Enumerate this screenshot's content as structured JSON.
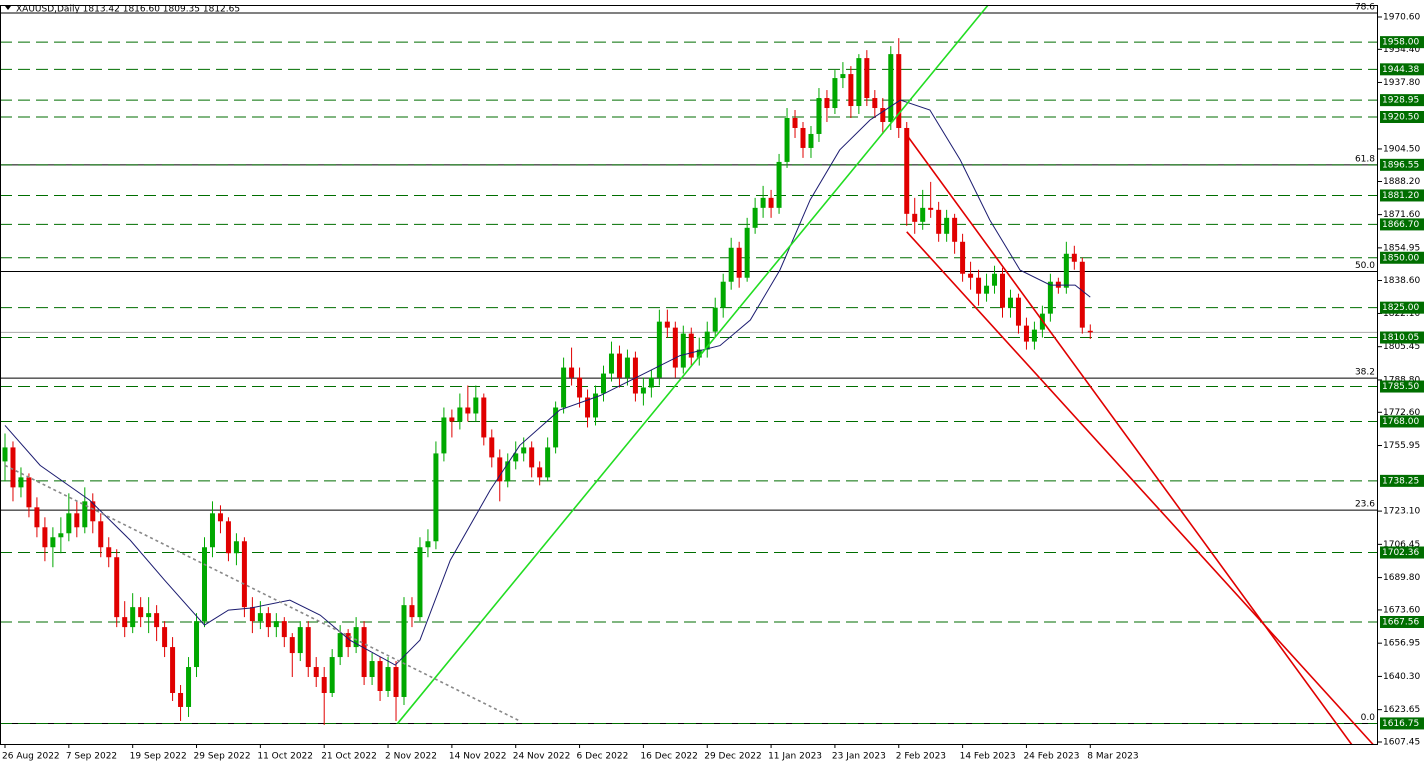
{
  "chart_data": {
    "type": "candlestick",
    "title": "XAUUSD,Daily  1813.42 1816.60 1809.35 1812.65",
    "bull_color": "#00a800",
    "bear_color": "#e00000",
    "ylim": [
      1605.95,
      1976.6
    ],
    "yticks": [
      {
        "value": 1970.6,
        "label": "1970.60"
      },
      {
        "value": 1954.4,
        "label": "1954.40"
      },
      {
        "value": 1937.8,
        "label": "1937.80"
      },
      {
        "value": 1904.5,
        "label": "1904.50"
      },
      {
        "value": 1888.2,
        "label": "1888.20"
      },
      {
        "value": 1871.6,
        "label": "1871.60"
      },
      1854.95,
      {
        "value": 1838.6,
        "label": "1838.60"
      },
      {
        "value": 1822.1,
        "label": "1822.10"
      },
      1805.45,
      {
        "value": 1788.8,
        "label": "1788.80"
      },
      {
        "value": 1772.6,
        "label": "1772.60"
      },
      1755.95,
      {
        "value": 1723.1,
        "label": "1723.10"
      },
      1706.45,
      {
        "value": 1689.8,
        "label": "1689.80"
      },
      {
        "value": 1673.6,
        "label": "1673.60"
      },
      1656.95,
      {
        "value": 1640.3,
        "label": "1640.30"
      },
      1623.65,
      1607.45
    ],
    "categories": [
      "26 Aug 2022",
      null,
      null,
      null,
      null,
      null,
      null,
      null,
      "7 Sep 2022",
      null,
      null,
      null,
      null,
      null,
      null,
      null,
      "19 Sep 2022",
      null,
      null,
      null,
      null,
      null,
      null,
      null,
      "29 Sep 2022",
      null,
      null,
      null,
      null,
      null,
      null,
      null,
      "11 Oct 2022",
      null,
      null,
      null,
      null,
      null,
      null,
      null,
      "21 Oct 2022",
      null,
      null,
      null,
      null,
      null,
      null,
      null,
      "2 Nov 2022",
      null,
      null,
      null,
      null,
      null,
      null,
      null,
      "14 Nov 2022",
      null,
      null,
      null,
      null,
      null,
      null,
      null,
      "24 Nov 2022",
      null,
      null,
      null,
      null,
      null,
      null,
      null,
      "6 Dec 2022",
      null,
      null,
      null,
      null,
      null,
      null,
      null,
      "16 Dec 2022",
      null,
      null,
      null,
      null,
      null,
      null,
      null,
      "29 Dec 2022",
      null,
      null,
      null,
      null,
      null,
      null,
      null,
      "11 Jan 2023",
      null,
      null,
      null,
      null,
      null,
      null,
      null,
      "23 Jan 2023",
      null,
      null,
      null,
      null,
      null,
      null,
      null,
      "2 Feb 2023",
      null,
      null,
      null,
      null,
      null,
      null,
      null,
      "14 Feb 2023",
      null,
      null,
      null,
      null,
      null,
      null,
      null,
      "24 Feb 2023",
      null,
      null,
      null,
      null,
      null,
      null,
      null,
      "8 Mar 2023"
    ],
    "candles": [
      [
        1748,
        1762,
        1738,
        1755
      ],
      [
        1755,
        1758,
        1728,
        1735
      ],
      [
        1735,
        1745,
        1730,
        1740
      ],
      [
        1740,
        1742,
        1720,
        1725
      ],
      [
        1725,
        1730,
        1710,
        1715
      ],
      [
        1715,
        1720,
        1698,
        1705
      ],
      [
        1705,
        1715,
        1695,
        1710
      ],
      [
        1710,
        1720,
        1702,
        1712
      ],
      [
        1712,
        1732,
        1708,
        1722
      ],
      [
        1722,
        1728,
        1710,
        1715
      ],
      [
        1715,
        1735,
        1712,
        1728
      ],
      [
        1728,
        1732,
        1712,
        1718
      ],
      [
        1718,
        1722,
        1700,
        1705
      ],
      [
        1705,
        1710,
        1695,
        1700
      ],
      [
        1700,
        1704,
        1665,
        1670
      ],
      [
        1670,
        1678,
        1660,
        1665
      ],
      [
        1665,
        1682,
        1662,
        1675
      ],
      [
        1675,
        1680,
        1665,
        1670
      ],
      [
        1670,
        1680,
        1662,
        1672
      ],
      [
        1672,
        1676,
        1658,
        1665
      ],
      [
        1665,
        1668,
        1650,
        1655
      ],
      [
        1655,
        1660,
        1628,
        1632
      ],
      [
        1632,
        1636,
        1618,
        1625
      ],
      [
        1625,
        1650,
        1620,
        1645
      ],
      [
        1645,
        1672,
        1640,
        1668
      ],
      [
        1668,
        1710,
        1665,
        1705
      ],
      [
        1705,
        1728,
        1700,
        1722
      ],
      [
        1722,
        1726,
        1712,
        1718
      ],
      [
        1718,
        1720,
        1698,
        1702
      ],
      [
        1702,
        1712,
        1696,
        1708
      ],
      [
        1708,
        1710,
        1670,
        1675
      ],
      [
        1675,
        1680,
        1662,
        1668
      ],
      [
        1668,
        1678,
        1664,
        1672
      ],
      [
        1672,
        1675,
        1660,
        1665
      ],
      [
        1665,
        1672,
        1660,
        1668
      ],
      [
        1668,
        1670,
        1655,
        1660
      ],
      [
        1660,
        1662,
        1640,
        1652
      ],
      [
        1652,
        1668,
        1648,
        1665
      ],
      [
        1665,
        1668,
        1640,
        1645
      ],
      [
        1645,
        1650,
        1635,
        1640
      ],
      [
        1640,
        1645,
        1616,
        1632
      ],
      [
        1632,
        1654,
        1630,
        1650
      ],
      [
        1650,
        1666,
        1646,
        1662
      ],
      [
        1662,
        1664,
        1650,
        1655
      ],
      [
        1655,
        1670,
        1652,
        1665
      ],
      [
        1665,
        1668,
        1636,
        1640
      ],
      [
        1640,
        1652,
        1636,
        1648
      ],
      [
        1648,
        1650,
        1628,
        1633
      ],
      [
        1633,
        1650,
        1630,
        1645
      ],
      [
        1645,
        1648,
        1618,
        1630
      ],
      [
        1630,
        1680,
        1626,
        1676
      ],
      [
        1676,
        1680,
        1665,
        1670
      ],
      [
        1670,
        1710,
        1668,
        1705
      ],
      [
        1705,
        1714,
        1700,
        1708
      ],
      [
        1708,
        1758,
        1704,
        1752
      ],
      [
        1752,
        1775,
        1748,
        1770
      ],
      [
        1770,
        1774,
        1760,
        1768
      ],
      [
        1768,
        1782,
        1764,
        1775
      ],
      [
        1775,
        1786,
        1768,
        1772
      ],
      [
        1772,
        1786,
        1768,
        1780
      ],
      [
        1780,
        1782,
        1756,
        1760
      ],
      [
        1760,
        1764,
        1745,
        1750
      ],
      [
        1750,
        1754,
        1728,
        1738
      ],
      [
        1738,
        1752,
        1735,
        1748
      ],
      [
        1748,
        1758,
        1744,
        1752
      ],
      [
        1752,
        1760,
        1748,
        1755
      ],
      [
        1755,
        1758,
        1740,
        1745
      ],
      [
        1745,
        1748,
        1736,
        1740
      ],
      [
        1740,
        1760,
        1738,
        1755
      ],
      [
        1755,
        1778,
        1752,
        1775
      ],
      [
        1775,
        1800,
        1772,
        1795
      ],
      [
        1795,
        1805,
        1786,
        1790
      ],
      [
        1790,
        1795,
        1775,
        1780
      ],
      [
        1780,
        1784,
        1765,
        1770
      ],
      [
        1770,
        1786,
        1766,
        1782
      ],
      [
        1782,
        1796,
        1778,
        1792
      ],
      [
        1792,
        1808,
        1788,
        1802
      ],
      [
        1802,
        1806,
        1785,
        1790
      ],
      [
        1790,
        1804,
        1786,
        1800
      ],
      [
        1800,
        1803,
        1778,
        1782
      ],
      [
        1782,
        1790,
        1776,
        1785
      ],
      [
        1785,
        1794,
        1780,
        1790
      ],
      [
        1790,
        1824,
        1786,
        1818
      ],
      [
        1818,
        1824,
        1810,
        1815
      ],
      [
        1815,
        1818,
        1790,
        1795
      ],
      [
        1795,
        1816,
        1792,
        1812
      ],
      [
        1812,
        1815,
        1796,
        1800
      ],
      [
        1800,
        1810,
        1796,
        1804
      ],
      [
        1804,
        1818,
        1800,
        1813
      ],
      [
        1813,
        1830,
        1810,
        1825
      ],
      [
        1825,
        1842,
        1820,
        1838
      ],
      [
        1838,
        1860,
        1834,
        1855
      ],
      [
        1855,
        1858,
        1835,
        1840
      ],
      [
        1840,
        1870,
        1838,
        1865
      ],
      [
        1865,
        1880,
        1862,
        1875
      ],
      [
        1875,
        1886,
        1870,
        1880
      ],
      [
        1880,
        1884,
        1870,
        1875
      ],
      [
        1875,
        1902,
        1872,
        1898
      ],
      [
        1898,
        1925,
        1895,
        1920
      ],
      [
        1920,
        1924,
        1910,
        1915
      ],
      [
        1915,
        1918,
        1900,
        1905
      ],
      [
        1905,
        1916,
        1900,
        1912
      ],
      [
        1912,
        1935,
        1908,
        1930
      ],
      [
        1930,
        1934,
        1918,
        1925
      ],
      [
        1925,
        1944,
        1922,
        1940
      ],
      [
        1940,
        1948,
        1935,
        1942
      ],
      [
        1942,
        1946,
        1920,
        1926
      ],
      [
        1926,
        1952,
        1922,
        1950
      ],
      [
        1950,
        1954,
        1926,
        1930
      ],
      [
        1930,
        1934,
        1920,
        1925
      ],
      [
        1925,
        1930,
        1912,
        1918
      ],
      [
        1918,
        1956,
        1914,
        1952
      ],
      [
        1952,
        1960,
        1910,
        1915
      ],
      [
        1915,
        1918,
        1866,
        1872
      ],
      [
        1872,
        1880,
        1862,
        1868
      ],
      [
        1868,
        1884,
        1864,
        1875
      ],
      [
        1875,
        1888,
        1870,
        1874
      ],
      [
        1874,
        1878,
        1858,
        1862
      ],
      [
        1862,
        1874,
        1858,
        1870
      ],
      [
        1870,
        1872,
        1852,
        1858
      ],
      [
        1858,
        1862,
        1838,
        1842
      ],
      [
        1842,
        1848,
        1834,
        1840
      ],
      [
        1840,
        1844,
        1826,
        1832
      ],
      [
        1832,
        1842,
        1828,
        1836
      ],
      [
        1836,
        1846,
        1832,
        1842
      ],
      [
        1842,
        1845,
        1820,
        1825
      ],
      [
        1825,
        1834,
        1820,
        1830
      ],
      [
        1830,
        1832,
        1812,
        1816
      ],
      [
        1816,
        1820,
        1804,
        1808
      ],
      [
        1808,
        1818,
        1804,
        1814
      ],
      [
        1814,
        1826,
        1810,
        1822
      ],
      [
        1822,
        1842,
        1818,
        1838
      ],
      [
        1838,
        1840,
        1832,
        1835
      ],
      [
        1835,
        1858,
        1832,
        1852
      ],
      [
        1852,
        1856,
        1844,
        1848
      ],
      [
        1848,
        1850,
        1812,
        1815
      ],
      [
        1813.42,
        1816.6,
        1809.35,
        1812.65
      ]
    ],
    "ma": {
      "color": "#1c1c70",
      "x": [
        0,
        4.4,
        10.6,
        15.7,
        20,
        25,
        28,
        30.7,
        35.7,
        39.5,
        43.2,
        48.9,
        52,
        55.8,
        60.8,
        64.5,
        69.5,
        74.6,
        79.6,
        84.6,
        89.6,
        93.4,
        97.1,
        100.9,
        104.6,
        108.4,
        112.2,
        115.9,
        119.7,
        123.4,
        127.2,
        131,
        134.1,
        136
      ],
      "values": [
        1766,
        1746,
        1728.6,
        1708.5,
        1688.5,
        1666,
        1673.5,
        1674.5,
        1678.5,
        1671,
        1658.5,
        1646,
        1658.5,
        1698.5,
        1733.6,
        1756,
        1773.7,
        1781,
        1791,
        1801,
        1806,
        1818.8,
        1843.8,
        1879,
        1904,
        1919,
        1929,
        1924,
        1899,
        1869,
        1843.8,
        1836.3,
        1836.3,
        1830.3
      ]
    },
    "level_color": "#006e00",
    "levels": [
      {
        "value": 1958,
        "label": "1958.00"
      },
      1944.38,
      1928.95,
      {
        "value": 1920.5,
        "label": "1920.50"
      },
      1896.55,
      {
        "value": 1881.2,
        "label": "1881.20"
      },
      {
        "value": 1866.7,
        "label": "1866.70"
      },
      {
        "value": 1850,
        "label": "1850.00"
      },
      {
        "value": 1825,
        "label": "1825.00"
      },
      1810.05,
      {
        "value": 1785.5,
        "label": "1785.50"
      },
      {
        "value": 1768,
        "label": "1768.00"
      },
      1738.25,
      1702.36,
      1667.56,
      1616.75
    ],
    "fibo": [
      {
        "label": "78.6",
        "price": 1972.6
      },
      {
        "label": "61.8",
        "price": 1896.55
      },
      {
        "label": "50.0",
        "price": 1843.1
      },
      {
        "label": "38.2",
        "price": 1789.7
      },
      {
        "label": "23.6",
        "price": 1723.6
      },
      {
        "label": "0.0",
        "price": 1616.75
      }
    ],
    "trendlines": [
      {
        "color": "#22dd22",
        "style": "solid",
        "x": [
          49.2,
          123.2
        ],
        "values": [
          1616.75,
          1976.6
        ]
      },
      {
        "color": "#e00000",
        "style": "solid",
        "x": [
          113,
          168.8
        ],
        "values": [
          1911.5,
          1605.95
        ]
      },
      {
        "color": "#e00000",
        "style": "solid",
        "x": [
          113,
          171.5
        ],
        "values": [
          1863,
          1605.95
        ]
      },
      {
        "color": "#888888",
        "style": "dotted",
        "x": [
          0,
          64.5
        ],
        "values": [
          1746,
          1618
        ]
      }
    ]
  }
}
